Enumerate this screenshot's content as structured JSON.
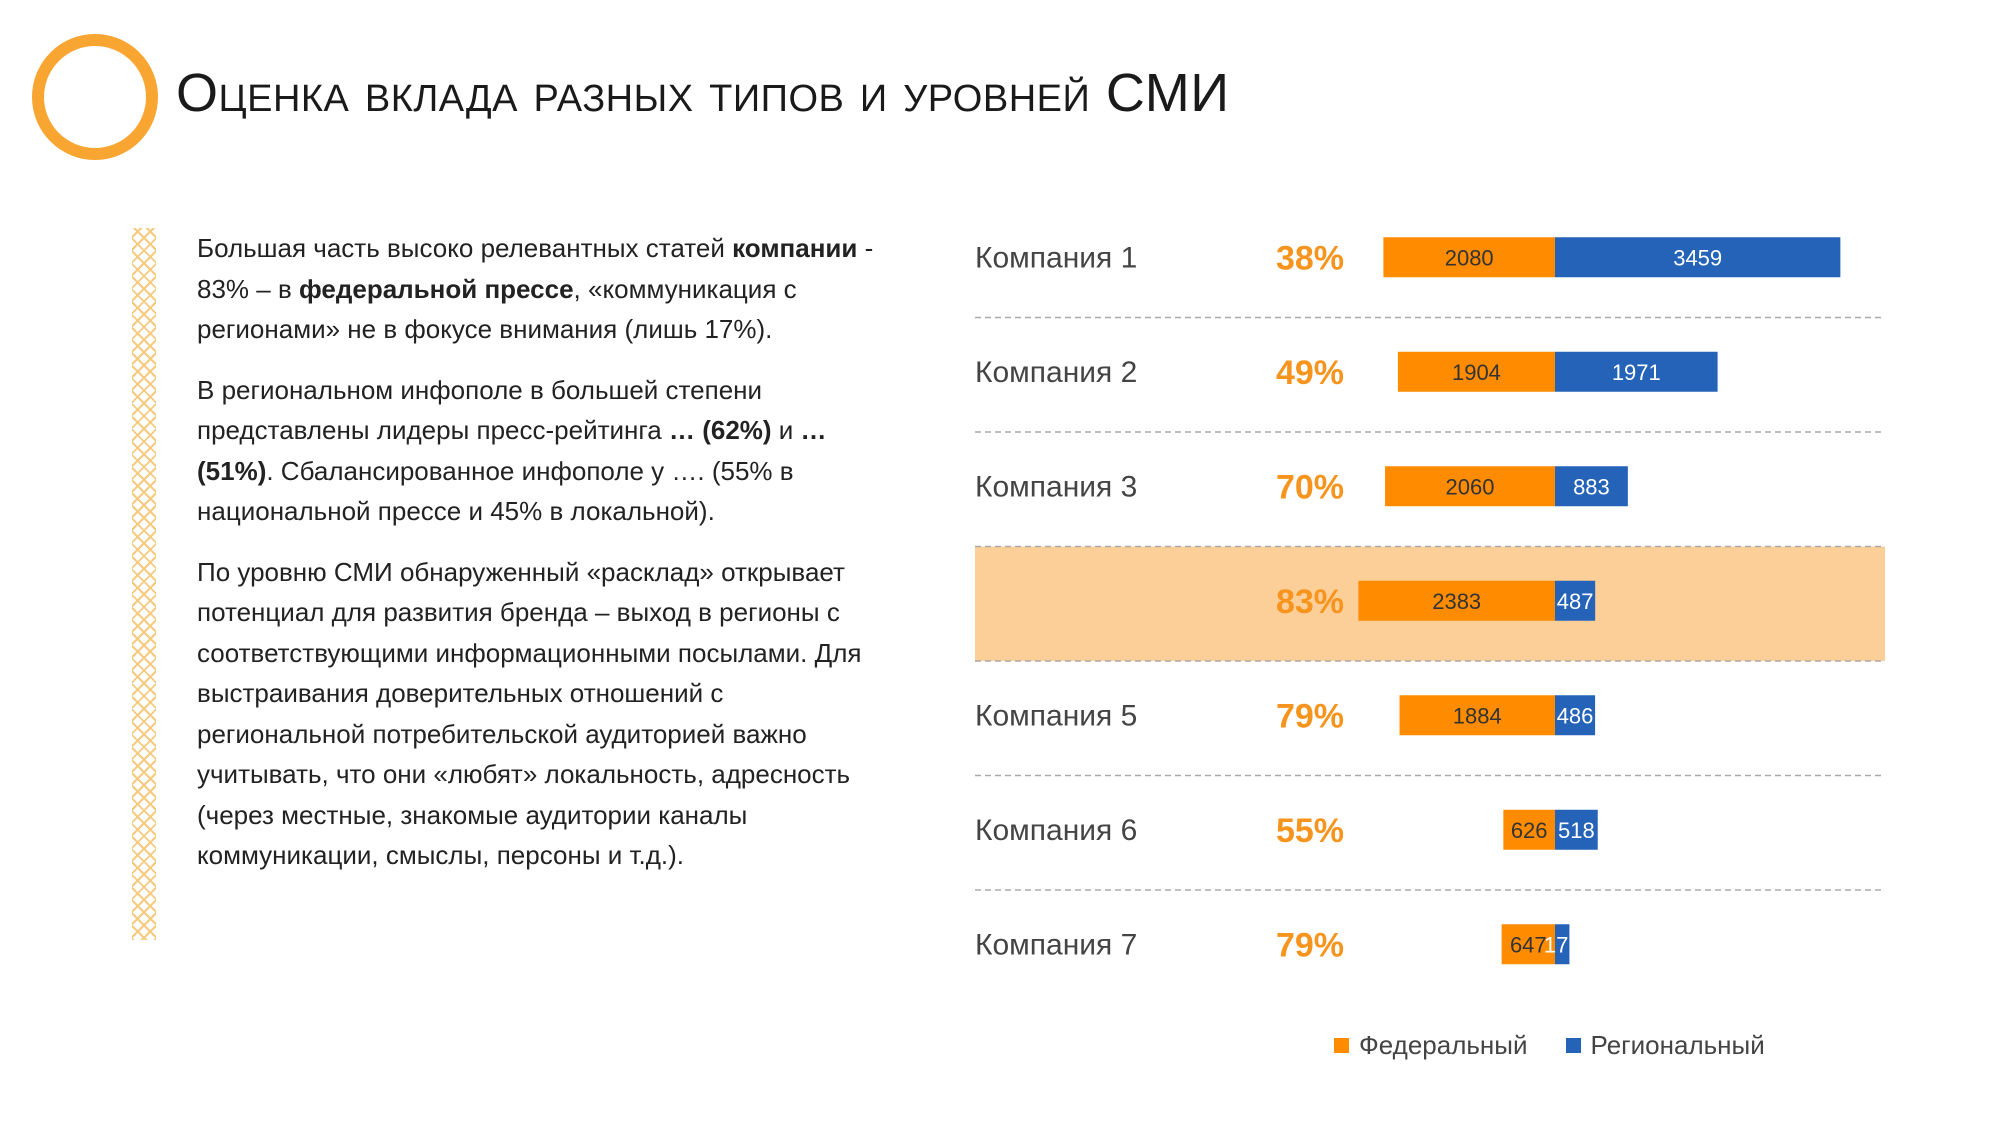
{
  "title": "Оценка вклада разных типов и уровней СМИ",
  "paragraphs": [
    [
      {
        "t": "Большая часть высоко релевантных статей "
      },
      {
        "t": "компании",
        "b": true
      },
      {
        "t": " - 83% – в "
      },
      {
        "t": "федеральной прессе",
        "b": true
      },
      {
        "t": ", «коммуникация с регионами» не в фокусе внимания (лишь 17%)."
      }
    ],
    [
      {
        "t": "В региональном инфополе в большей степени представлены лидеры пресс-рейтинга "
      },
      {
        "t": "… (62%)",
        "b": true
      },
      {
        "t": " и "
      },
      {
        "t": "…(51%)",
        "b": true
      },
      {
        "t": ". Сбалансированное инфополе у …. (55% в национальной прессе и 45% в локальной)."
      }
    ],
    [
      {
        "t": "По уровню СМИ обнаруженный «расклад» открывает потенциал для развития бренда – выход в регионы с соответствующими информационными посылами. Для выстраивания доверительных отношений с региональной потребительской аудиторией важно учитывать, что они «любят» локальность, адресность (через местные, знакомые аудитории каналы коммуникации, смыслы, персоны и  т.д.)."
      }
    ]
  ],
  "chart_data": {
    "type": "bar",
    "orientation": "horizontal",
    "stacked": true,
    "categories": [
      "Компания 1",
      "Компания 2",
      "Компания 3",
      "",
      "Компания 5",
      "Компания 6",
      "Компания 7"
    ],
    "percent_labels": [
      "38%",
      "49%",
      "70%",
      "83%",
      "79%",
      "55%",
      "79%"
    ],
    "highlight_index": 3,
    "series": [
      {
        "name": "Федеральный",
        "values": [
          2080,
          1904,
          2060,
          2383,
          1884,
          626,
          647
        ]
      },
      {
        "name": "Региональный",
        "values": [
          3459,
          1971,
          883,
          487,
          486,
          518,
          175
        ]
      }
    ],
    "legend_position": "bottom-right"
  },
  "colors": {
    "accent": "#F8A531",
    "federal": "#FF8C00",
    "regional": "#2563B8",
    "percent": "#F7941D",
    "highlight_band": "#FDCF98",
    "separator": "#AAAAAA"
  }
}
